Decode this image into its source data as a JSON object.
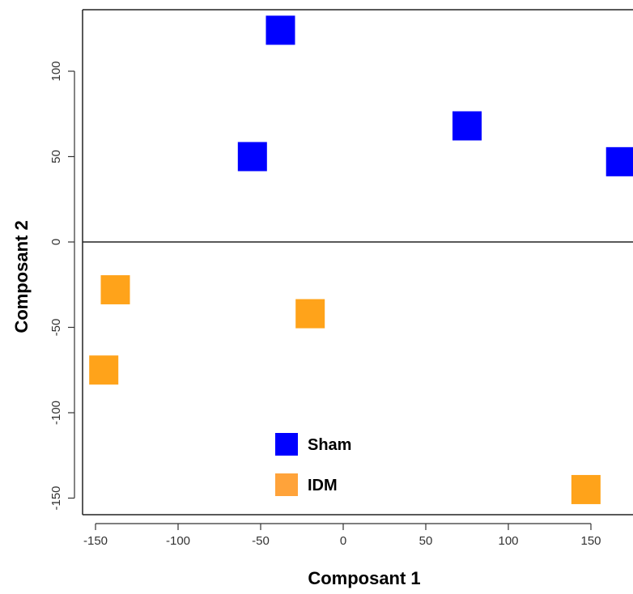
{
  "chart_data": {
    "type": "scatter",
    "title": "",
    "xlabel": "Composant 1",
    "ylabel": "Composant 2",
    "xlim": [
      -155,
      175
    ],
    "ylim": [
      -157,
      133
    ],
    "xticks": [
      -150,
      -100,
      -50,
      0,
      50,
      100,
      150
    ],
    "yticks": [
      -150,
      -100,
      -50,
      0,
      50,
      100
    ],
    "xtick_labels": [
      "-150",
      "-100",
      "-50",
      "0",
      "50",
      "100",
      "150"
    ],
    "ytick_labels": [
      "-150",
      "-100",
      "-50",
      "0",
      "50",
      "100"
    ],
    "reference_line_y": 0,
    "legend_position": "bottom-center",
    "series": [
      {
        "name": "Sham",
        "color": "#0000ff",
        "points": [
          {
            "x": -38,
            "y": 124
          },
          {
            "x": -55,
            "y": 50
          },
          {
            "x": 75,
            "y": 68
          },
          {
            "x": 168,
            "y": 47
          }
        ]
      },
      {
        "name": "IDM",
        "color": "#ffa31a",
        "points": [
          {
            "x": -138,
            "y": -28
          },
          {
            "x": -145,
            "y": -75
          },
          {
            "x": -20,
            "y": -42
          },
          {
            "x": 147,
            "y": -145
          }
        ]
      }
    ],
    "legend_colors": [
      "#0000ff",
      "#ffa33a"
    ]
  }
}
